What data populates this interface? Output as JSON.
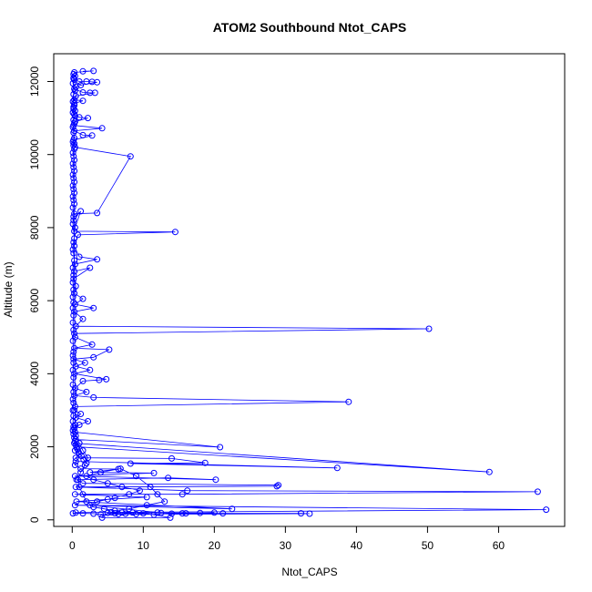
{
  "chart_data": {
    "type": "scatter",
    "title": "ATOM2 Southbound Ntot_CAPS",
    "xlabel": "Ntot_CAPS",
    "ylabel": "Altitude (m)",
    "xlim": [
      -2.6,
      69.3
    ],
    "ylim": [
      -180,
      12760
    ],
    "x_ticks": [
      0,
      10,
      20,
      30,
      40,
      50,
      60
    ],
    "y_ticks": [
      0,
      2000,
      4000,
      6000,
      8000,
      10000,
      12000
    ],
    "grid": false,
    "marker": "open-circle",
    "connect_points": true,
    "series_color": "#0000ff",
    "series": [
      {
        "points": [
          [
            1.5,
            12280
          ],
          [
            3.0,
            12290
          ],
          [
            0.3,
            12250
          ],
          [
            0.2,
            12200
          ],
          [
            0.4,
            12150
          ],
          [
            0.2,
            12100
          ],
          [
            0.3,
            12050
          ],
          [
            1.0,
            12000
          ],
          [
            2.0,
            12000
          ],
          [
            2.8,
            11990
          ],
          [
            3.5,
            11980
          ],
          [
            1.2,
            11900
          ],
          [
            0.5,
            11850
          ],
          [
            0.3,
            11800
          ],
          [
            1.5,
            11700
          ],
          [
            2.5,
            11690
          ],
          [
            3.2,
            11690
          ],
          [
            0.5,
            11600
          ],
          [
            0.3,
            11500
          ],
          [
            1.5,
            11470
          ],
          [
            0.3,
            11400
          ],
          [
            0.2,
            11300
          ],
          [
            0.4,
            11200
          ],
          [
            0.3,
            11100
          ],
          [
            1.0,
            11020
          ],
          [
            2.2,
            11000
          ],
          [
            0.4,
            10900
          ],
          [
            0.2,
            10800
          ],
          [
            4.2,
            10720
          ],
          [
            0.3,
            10650
          ],
          [
            1.5,
            10530
          ],
          [
            2.8,
            10520
          ],
          [
            0.2,
            10400
          ],
          [
            0.3,
            10300
          ],
          [
            0.4,
            10200
          ],
          [
            8.2,
            9950
          ],
          [
            3.5,
            8400
          ],
          [
            0.3,
            8380
          ],
          [
            0.2,
            8200
          ],
          [
            1.2,
            8450
          ],
          [
            0.4,
            8000
          ],
          [
            0.3,
            7900
          ],
          [
            14.5,
            7880
          ],
          [
            0.8,
            7800
          ],
          [
            0.3,
            7500
          ],
          [
            1.0,
            7200
          ],
          [
            3.5,
            7130
          ],
          [
            0.4,
            7000
          ],
          [
            0.3,
            6800
          ],
          [
            2.5,
            6900
          ],
          [
            0.2,
            6600
          ],
          [
            0.5,
            6400
          ],
          [
            0.3,
            6200
          ],
          [
            1.5,
            6050
          ],
          [
            0.4,
            5900
          ],
          [
            3.0,
            5800
          ],
          [
            0.3,
            5700
          ],
          [
            1.5,
            5500
          ],
          [
            0.5,
            5300
          ],
          [
            50.2,
            5230
          ],
          [
            0.3,
            5100
          ],
          [
            0.4,
            5000
          ],
          [
            2.8,
            4800
          ],
          [
            0.3,
            4700
          ],
          [
            5.2,
            4660
          ],
          [
            3.0,
            4450
          ],
          [
            0.2,
            4400
          ],
          [
            1.8,
            4300
          ],
          [
            0.5,
            4200
          ],
          [
            2.5,
            4100
          ],
          [
            0.3,
            4000
          ],
          [
            4.8,
            3850
          ],
          [
            3.8,
            3830
          ],
          [
            1.5,
            3800
          ],
          [
            0.4,
            3600
          ],
          [
            2.0,
            3500
          ],
          [
            0.3,
            3400
          ],
          [
            3.0,
            3350
          ],
          [
            38.9,
            3230
          ],
          [
            0.4,
            3100
          ],
          [
            0.3,
            3000
          ],
          [
            1.2,
            2900
          ],
          [
            0.5,
            2800
          ],
          [
            2.2,
            2700
          ],
          [
            1.0,
            2600
          ],
          [
            0.3,
            2500
          ],
          [
            0.4,
            2400
          ],
          [
            20.8,
            1990
          ],
          [
            0.5,
            2200
          ],
          [
            0.3,
            2100
          ],
          [
            58.7,
            1310
          ],
          [
            0.6,
            2000
          ],
          [
            0.4,
            1900
          ],
          [
            1.0,
            1800
          ],
          [
            0.5,
            1700
          ],
          [
            14.0,
            1680
          ],
          [
            18.7,
            1560
          ],
          [
            8.2,
            1540
          ],
          [
            37.3,
            1420
          ],
          [
            0.5,
            1600
          ],
          [
            0.4,
            1500
          ],
          [
            1.2,
            1400
          ],
          [
            6.5,
            1390
          ],
          [
            2.5,
            1300
          ],
          [
            11.5,
            1280
          ],
          [
            0.4,
            1200
          ],
          [
            20.2,
            1100
          ],
          [
            13.5,
            1150
          ],
          [
            0.6,
            1100
          ],
          [
            1.5,
            1000
          ],
          [
            29.0,
            950
          ],
          [
            28.8,
            920
          ],
          [
            0.5,
            900
          ],
          [
            16.2,
            800
          ],
          [
            65.5,
            770
          ],
          [
            15.5,
            700
          ],
          [
            0.4,
            700
          ],
          [
            10.5,
            620
          ],
          [
            5.0,
            560
          ],
          [
            0.6,
            500
          ],
          [
            22.5,
            300
          ],
          [
            0.4,
            400
          ],
          [
            66.7,
            280
          ],
          [
            0.5,
            200
          ],
          [
            0.1,
            180
          ],
          [
            1.5,
            180
          ],
          [
            3.0,
            170
          ],
          [
            4.0,
            150
          ],
          [
            33.4,
            170
          ],
          [
            32.2,
            180
          ],
          [
            21.2,
            180
          ],
          [
            15.5,
            180
          ],
          [
            12.0,
            200
          ],
          [
            9.0,
            160
          ],
          [
            7.0,
            200
          ],
          [
            6.0,
            180
          ],
          [
            5.0,
            190
          ],
          [
            4.2,
            60
          ],
          [
            13.8,
            60
          ],
          [
            11.5,
            140
          ],
          [
            10.0,
            180
          ],
          [
            8.5,
            200
          ],
          [
            7.5,
            170
          ],
          [
            6.5,
            160
          ],
          [
            5.5,
            210
          ],
          [
            18.0,
            190
          ],
          [
            20.0,
            200
          ],
          [
            16.0,
            180
          ],
          [
            14.0,
            170
          ],
          [
            12.5,
            190
          ],
          [
            2.5,
            400
          ],
          [
            3.5,
            500
          ],
          [
            6.0,
            600
          ],
          [
            8.0,
            700
          ],
          [
            9.5,
            800
          ],
          [
            7.0,
            900
          ],
          [
            5.0,
            1000
          ],
          [
            3.0,
            1100
          ],
          [
            2.0,
            1200
          ],
          [
            4.0,
            1300
          ],
          [
            6.8,
            1400
          ],
          [
            9.0,
            1200
          ],
          [
            11.0,
            900
          ],
          [
            12.0,
            700
          ],
          [
            13.0,
            500
          ],
          [
            10.5,
            400
          ],
          [
            8.0,
            300
          ],
          [
            6.0,
            250
          ],
          [
            4.5,
            300
          ],
          [
            3.0,
            350
          ],
          [
            2.0,
            500
          ],
          [
            1.5,
            700
          ],
          [
            1.0,
            900
          ],
          [
            0.8,
            1100
          ],
          [
            1.2,
            1300
          ],
          [
            1.8,
            1500
          ],
          [
            2.2,
            1700
          ],
          [
            1.5,
            1900
          ],
          [
            1.0,
            2100
          ],
          [
            0.5,
            2300
          ],
          [
            0.4,
            2600
          ],
          [
            0.2,
            12080
          ],
          [
            0.1,
            11950
          ],
          [
            0.4,
            11750
          ],
          [
            0.2,
            11650
          ],
          [
            0.1,
            11450
          ],
          [
            0.3,
            11350
          ],
          [
            0.2,
            11250
          ],
          [
            0.1,
            11150
          ],
          [
            0.4,
            11050
          ],
          [
            0.2,
            10950
          ],
          [
            0.3,
            10850
          ],
          [
            0.1,
            10750
          ],
          [
            0.2,
            10600
          ],
          [
            0.3,
            10450
          ],
          [
            0.1,
            10350
          ],
          [
            0.2,
            10250
          ],
          [
            0.3,
            10150
          ],
          [
            0.1,
            10050
          ],
          [
            0.2,
            9950
          ],
          [
            0.3,
            9850
          ],
          [
            0.1,
            9750
          ],
          [
            0.2,
            9650
          ],
          [
            0.3,
            9550
          ],
          [
            0.1,
            9450
          ],
          [
            0.2,
            9350
          ],
          [
            0.3,
            9250
          ],
          [
            0.1,
            9150
          ],
          [
            0.2,
            9050
          ],
          [
            0.3,
            8950
          ],
          [
            0.1,
            8850
          ],
          [
            0.2,
            8750
          ],
          [
            0.3,
            8650
          ],
          [
            0.1,
            8550
          ],
          [
            0.2,
            8300
          ],
          [
            0.1,
            8100
          ],
          [
            0.3,
            7700
          ],
          [
            0.2,
            7600
          ],
          [
            0.1,
            7400
          ],
          [
            0.2,
            7300
          ],
          [
            0.3,
            7100
          ],
          [
            0.1,
            6900
          ],
          [
            0.2,
            6700
          ],
          [
            0.1,
            6500
          ],
          [
            0.2,
            6300
          ],
          [
            0.1,
            6100
          ],
          [
            0.2,
            5950
          ],
          [
            0.1,
            5800
          ],
          [
            0.2,
            5600
          ],
          [
            0.1,
            5400
          ],
          [
            0.2,
            5200
          ],
          [
            0.1,
            4900
          ],
          [
            0.2,
            4600
          ],
          [
            0.1,
            4500
          ],
          [
            0.2,
            4300
          ],
          [
            0.1,
            4100
          ],
          [
            0.2,
            3900
          ],
          [
            0.1,
            3700
          ],
          [
            0.2,
            3500
          ],
          [
            0.1,
            3300
          ],
          [
            0.2,
            3200
          ],
          [
            0.1,
            3000
          ],
          [
            0.2,
            2850
          ],
          [
            0.1,
            2700
          ],
          [
            0.2,
            2550
          ],
          [
            0.1,
            2450
          ],
          [
            0.2,
            2350
          ],
          [
            0.3,
            2250
          ],
          [
            0.4,
            2150
          ],
          [
            0.5,
            2050
          ],
          [
            0.7,
            1950
          ],
          [
            0.9,
            1850
          ],
          [
            1.3,
            1750
          ],
          [
            1.6,
            1650
          ],
          [
            2.0,
            1550
          ]
        ]
      }
    ]
  }
}
